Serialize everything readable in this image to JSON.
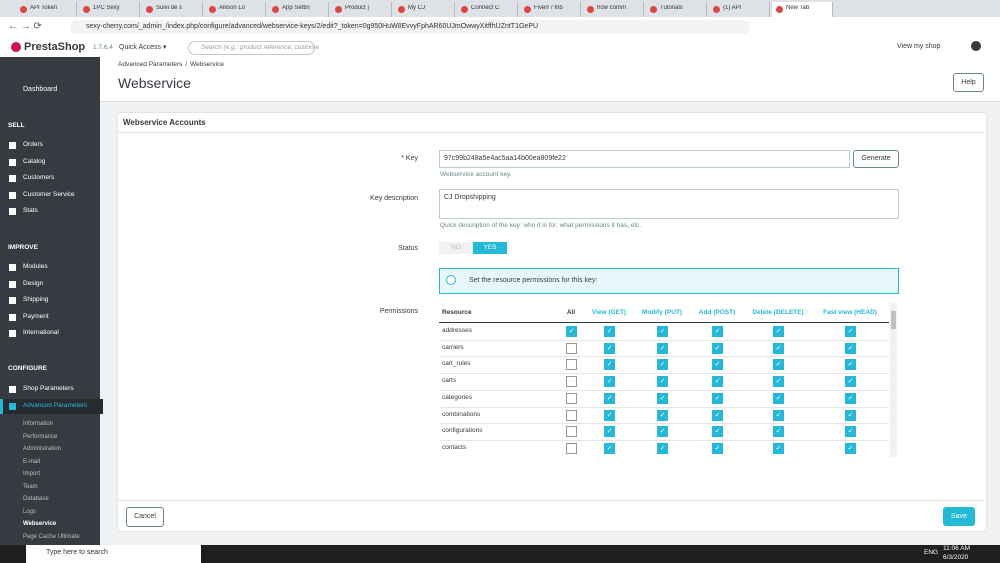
{
  "browser": {
    "tabs": [
      "API Token",
      "1PC Sexy",
      "Suivi de s",
      "Allison Lo",
      "App Settin",
      "Product |",
      "My CJ",
      "Connect C",
      "Fiverr / Inb",
      "how comm",
      "Tutorials",
      "(1) API",
      "New Tab"
    ],
    "url": "sexy-cherry.com/_admin_/index.php/configure/advanced/webservice-keys/2/edit?_token=0g950HuW8EvvyFphAR60UJmOwwyXitffhUZntT1GePU"
  },
  "header": {
    "brand": "PrestaShop",
    "version": "1.7.6.4",
    "quick_access": "Quick Access ▾",
    "search_placeholder": "Search (e.g.: product reference, custome",
    "view_shop": "View my shop"
  },
  "sidebar": {
    "dashboard": "Dashboard",
    "sections": [
      {
        "title": "SELL",
        "items": [
          "Orders",
          "Catalog",
          "Customers",
          "Customer Service",
          "Stats"
        ]
      },
      {
        "title": "IMPROVE",
        "items": [
          "Modules",
          "Design",
          "Shipping",
          "Payment",
          "International"
        ]
      },
      {
        "title": "CONFIGURE",
        "items": [
          "Shop Parameters",
          "Advanced Parameters"
        ],
        "submenu": [
          "Information",
          "Performance",
          "Administration",
          "E-mail",
          "Import",
          "Team",
          "Database",
          "Logs",
          "Webservice",
          "Page Cache Ultimate"
        ]
      }
    ]
  },
  "page": {
    "breadcrumb": [
      "Advanced Parameters",
      "/",
      "Webservice"
    ],
    "title": "Webservice",
    "help": "Help"
  },
  "form": {
    "panel_title": "Webservice Accounts",
    "key_label": "* Key",
    "key_value": "97c99b248a5e4ac5aa14b00ea809fe22",
    "generate": "Generate",
    "key_help": "Webservice account key.",
    "description_label": "Key description",
    "description_value": "CJ Dropshipping",
    "description_help": "Quick description of the key: who it is for, what permissions it has, etc.",
    "status_label": "Status",
    "status_no": "NO",
    "status_yes": "YES",
    "info": "Set the resource permissions for this key:",
    "permissions_label": "Permissions",
    "table": {
      "columns": [
        "Resource",
        "All",
        "View (GET)",
        "Modify (PUT)",
        "Add (POST)",
        "Delete (DELETE)",
        "Fast view (HEAD)"
      ],
      "rows": [
        {
          "resource": "addresses",
          "checked": [
            true,
            true,
            true,
            true,
            true,
            true
          ]
        },
        {
          "resource": "carriers",
          "checked": [
            false,
            true,
            true,
            true,
            true,
            true
          ]
        },
        {
          "resource": "cart_rules",
          "checked": [
            false,
            true,
            true,
            true,
            true,
            true
          ]
        },
        {
          "resource": "carts",
          "checked": [
            false,
            true,
            true,
            true,
            true,
            true
          ]
        },
        {
          "resource": "categories",
          "checked": [
            false,
            true,
            true,
            true,
            true,
            true
          ]
        },
        {
          "resource": "combinations",
          "checked": [
            false,
            true,
            true,
            true,
            true,
            true
          ]
        },
        {
          "resource": "configurations",
          "checked": [
            false,
            true,
            true,
            true,
            true,
            true
          ]
        },
        {
          "resource": "contacts",
          "checked": [
            false,
            true,
            true,
            true,
            true,
            true
          ]
        }
      ]
    },
    "cancel": "Cancel",
    "save": "Save"
  },
  "taskbar": {
    "search": "Type here to search",
    "lang": "ENG",
    "time": "11:06 AM",
    "date": "6/3/2020"
  }
}
